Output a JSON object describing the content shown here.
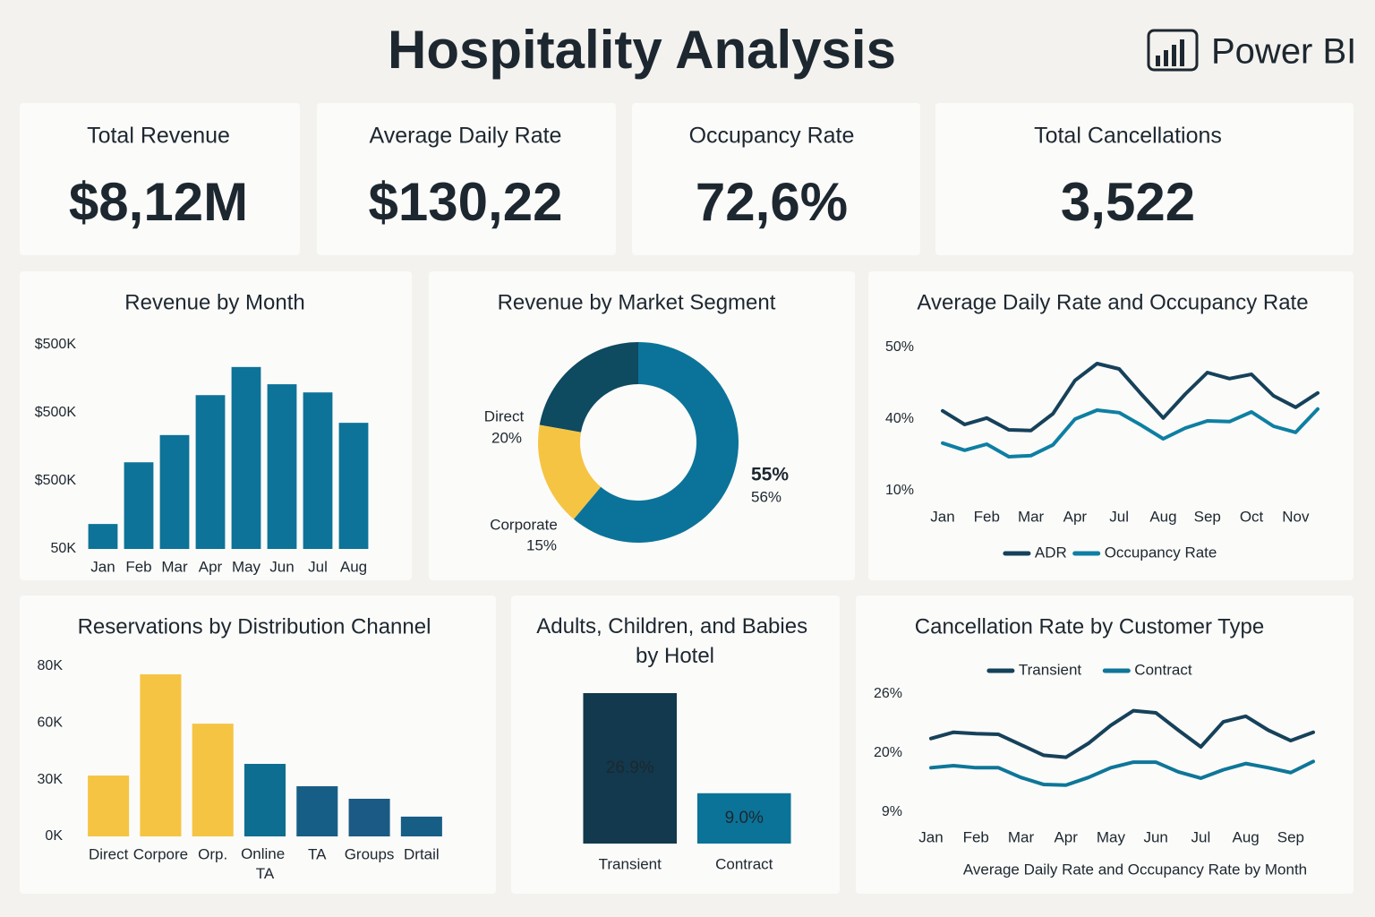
{
  "title": "Hospitality Analysis",
  "logo": "Power BI",
  "kpis": [
    {
      "label": "Total Revenue",
      "value": "$8,12M"
    },
    {
      "label": "Average Daily Rate",
      "value": "$130,22"
    },
    {
      "label": "Occupancy Rate",
      "value": "72,6%"
    },
    {
      "label": "Total Cancellations",
      "value": "3,522"
    }
  ],
  "chart_data": [
    {
      "type": "bar",
      "title": "Revenue by Month",
      "categories": [
        "Jan",
        "Feb",
        "Mar",
        "Apr",
        "May",
        "Jun",
        "Jul",
        "Aug"
      ],
      "values": [
        105,
        241,
        301,
        389,
        451,
        413,
        395,
        328
      ],
      "color": "#0d7399",
      "ylim": [
        50,
        500
      ],
      "ytick_labels": [
        "$500K",
        "$500K",
        "$500K",
        "50K"
      ]
    },
    {
      "type": "pie",
      "donut": true,
      "title": "Revenue by Market Segment",
      "categories": [
        "Direct",
        "Corporate",
        null
      ],
      "values": [
        20,
        15,
        55
      ],
      "value_labels": [
        "20%",
        "15%",
        "55%"
      ],
      "colors": [
        "#0e4a60",
        "#f6c443",
        "#0b7399"
      ],
      "annotation": "56%"
    },
    {
      "type": "line",
      "title": "Average Daily Rate and Occupancy Rate",
      "categories": [
        "Jan",
        null,
        "Feb",
        null,
        "Mar",
        null,
        "Apr",
        null,
        "Jul",
        null,
        "Aug",
        null,
        "Sep",
        null,
        "Oct",
        null,
        "Nov",
        null
      ],
      "series": [
        {
          "name": "ADR",
          "color": "#16415a",
          "values": [
            32.3,
            28.5,
            30.3,
            27,
            26.8,
            31.5,
            40.8,
            45.5,
            44,
            37,
            30.3,
            37,
            43,
            41.3,
            42.5,
            36.5,
            33.3,
            37.3
          ]
        },
        {
          "name": "Occupancy Rate",
          "color": "#0e7fa3",
          "values": [
            23.3,
            21.3,
            23,
            19.5,
            19.8,
            22.8,
            30,
            32.5,
            31.8,
            28.3,
            24.5,
            27.5,
            29.5,
            29.3,
            32,
            28,
            26.3,
            32.8
          ]
        }
      ],
      "ylim": [
        10,
        50
      ],
      "ytick_labels": [
        "50%",
        "40%",
        "10%"
      ],
      "legend": "bottom"
    },
    {
      "type": "bar",
      "title": "Reservations by Distribution Channel",
      "categories": [
        "Direct",
        "Corpore",
        "Orp.",
        "Online TA",
        "TA",
        "Groups",
        "Drtail"
      ],
      "values": [
        28.6,
        76.2,
        53,
        34.1,
        23.6,
        17.7,
        9.3
      ],
      "colors": [
        "#f6c443",
        "#f6c443",
        "#f6c443",
        "#0d6e91",
        "#175e86",
        "#1a5a84",
        "#175e86"
      ],
      "ylim": [
        0,
        80
      ],
      "ytick_labels": [
        "80K",
        "60K",
        "30K",
        "0K"
      ]
    },
    {
      "type": "bar",
      "title": "Adults, Children, and Babies by Hotel",
      "categories": [
        "Transient",
        "Contract"
      ],
      "values": [
        26.9,
        9.0
      ],
      "value_labels": [
        "26.9%",
        "9.0%"
      ],
      "colors": [
        "#12394d",
        "#0b7398"
      ]
    },
    {
      "type": "line",
      "title": "Cancellation Rate by Customer Type",
      "x_label": "Average Daily Rate and Occupancy Rate by Month",
      "categories": [
        "Jan",
        null,
        "Feb",
        null,
        "Mar",
        null,
        "Apr",
        null,
        "May",
        null,
        "Jun",
        null,
        "Jul",
        null,
        "Aug",
        null,
        "Sep",
        null
      ],
      "series": [
        {
          "name": "Transient",
          "color": "#16415a",
          "values": [
            19.6,
            20.5,
            20.3,
            20.2,
            18.7,
            17.2,
            16.9,
            18.9,
            21.5,
            23.6,
            23.3,
            20.8,
            18.4,
            22,
            22.8,
            20.8,
            19.3,
            20.5
          ]
        },
        {
          "name": "Contract",
          "color": "#0e7699",
          "values": [
            15.4,
            15.7,
            15.4,
            15.4,
            14,
            13,
            12.9,
            14,
            15.4,
            16.2,
            16.2,
            14.8,
            13.9,
            15.1,
            16,
            15.4,
            14.7,
            16.3
          ]
        }
      ],
      "ylim": [
        9,
        26
      ],
      "ytick_labels": [
        "26%",
        "20%",
        "9%"
      ],
      "legend": "top"
    }
  ]
}
